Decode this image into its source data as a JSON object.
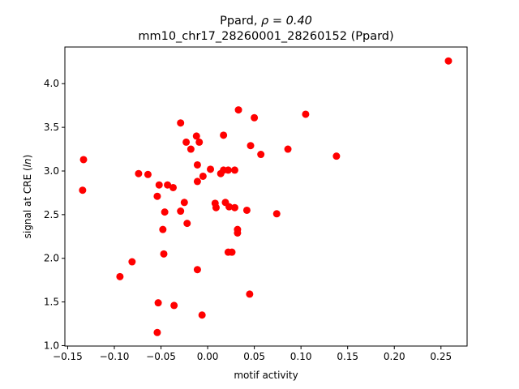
{
  "chart_data": {
    "type": "scatter",
    "title_line1_prefix": "Ppard, ",
    "title_line1_rho": "ρ = 0.40",
    "title_line2": "mm10_chr17_28260001_28260152 (Ppard)",
    "xlabel": "motif activity",
    "ylabel_prefix": "signal at CRE (",
    "ylabel_italic": "ln",
    "ylabel_suffix": ")",
    "xlim": [
      -0.153,
      0.278
    ],
    "ylim": [
      0.995,
      4.42
    ],
    "xticks": [
      {
        "value": -0.15,
        "label": "−0.15"
      },
      {
        "value": -0.1,
        "label": "−0.10"
      },
      {
        "value": -0.05,
        "label": "−0.05"
      },
      {
        "value": 0.0,
        "label": "0.00"
      },
      {
        "value": 0.05,
        "label": "0.05"
      },
      {
        "value": 0.1,
        "label": "0.10"
      },
      {
        "value": 0.15,
        "label": "0.15"
      },
      {
        "value": 0.2,
        "label": "0.20"
      },
      {
        "value": 0.25,
        "label": "0.25"
      }
    ],
    "yticks": [
      {
        "value": 1.0,
        "label": "1.0"
      },
      {
        "value": 1.5,
        "label": "1.5"
      },
      {
        "value": 2.0,
        "label": "2.0"
      },
      {
        "value": 2.5,
        "label": "2.5"
      },
      {
        "value": 3.0,
        "label": "3.0"
      },
      {
        "value": 3.5,
        "label": "3.5"
      },
      {
        "value": 4.0,
        "label": "4.0"
      }
    ],
    "grid": false,
    "marker_color": "#ff0000",
    "points": [
      [
        0.258,
        4.26
      ],
      [
        0.033,
        3.7
      ],
      [
        0.105,
        3.65
      ],
      [
        0.05,
        3.61
      ],
      [
        -0.029,
        3.55
      ],
      [
        -0.012,
        3.4
      ],
      [
        0.017,
        3.41
      ],
      [
        -0.023,
        3.33
      ],
      [
        -0.009,
        3.33
      ],
      [
        0.046,
        3.29
      ],
      [
        -0.018,
        3.25
      ],
      [
        0.086,
        3.25
      ],
      [
        0.057,
        3.19
      ],
      [
        0.138,
        3.17
      ],
      [
        -0.133,
        3.13
      ],
      [
        -0.011,
        3.07
      ],
      [
        0.003,
        3.02
      ],
      [
        0.017,
        3.01
      ],
      [
        0.022,
        3.01
      ],
      [
        0.029,
        3.01
      ],
      [
        -0.074,
        2.97
      ],
      [
        -0.064,
        2.96
      ],
      [
        0.014,
        2.97
      ],
      [
        -0.005,
        2.94
      ],
      [
        -0.011,
        2.88
      ],
      [
        -0.052,
        2.84
      ],
      [
        -0.043,
        2.84
      ],
      [
        -0.037,
        2.81
      ],
      [
        -0.134,
        2.78
      ],
      [
        -0.054,
        2.71
      ],
      [
        -0.025,
        2.64
      ],
      [
        0.008,
        2.63
      ],
      [
        0.019,
        2.64
      ],
      [
        0.023,
        2.59
      ],
      [
        0.029,
        2.58
      ],
      [
        0.009,
        2.58
      ],
      [
        0.042,
        2.55
      ],
      [
        -0.029,
        2.54
      ],
      [
        -0.046,
        2.53
      ],
      [
        0.074,
        2.51
      ],
      [
        -0.022,
        2.4
      ],
      [
        -0.048,
        2.33
      ],
      [
        0.032,
        2.33
      ],
      [
        0.032,
        2.29
      ],
      [
        0.022,
        2.07
      ],
      [
        0.026,
        2.07
      ],
      [
        -0.047,
        2.05
      ],
      [
        -0.081,
        1.96
      ],
      [
        -0.011,
        1.87
      ],
      [
        -0.094,
        1.79
      ],
      [
        0.045,
        1.59
      ],
      [
        -0.053,
        1.49
      ],
      [
        -0.036,
        1.46
      ],
      [
        -0.006,
        1.35
      ],
      [
        -0.054,
        1.15
      ]
    ]
  }
}
